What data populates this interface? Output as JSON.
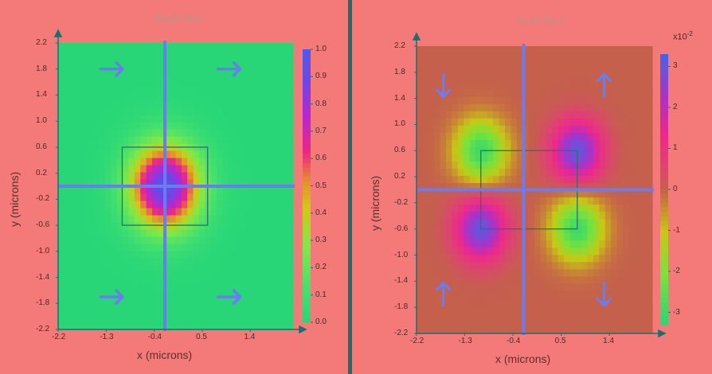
{
  "chart_data": [
    {
      "type": "heatmap",
      "title": "Real (Ex)",
      "xlabel": "x  (microns)",
      "ylabel": "y  (microns)",
      "x_ticks": [
        "-2.2",
        "-1.3",
        "-0.4",
        "0.5",
        "1.4"
      ],
      "y_ticks": [
        "2.2",
        "1.8",
        "1.4",
        "1.0",
        "0.6",
        "0.2",
        "-0.2",
        "-0.6",
        "-1.0",
        "-1.4",
        "-1.8",
        "-2.2"
      ],
      "colorbar_ticks": [
        "1.0",
        "0.9",
        "0.8",
        "0.7",
        "0.6",
        "0.5",
        "0.4",
        "0.3",
        "0.2",
        "0.1",
        "0.0"
      ],
      "colorbar_range": [
        0.0,
        1.0
      ],
      "xlim": [
        -2.2,
        2.2
      ],
      "ylim": [
        -2.2,
        2.2
      ],
      "field_peaks": [
        {
          "x": -0.2,
          "y": 0.0,
          "value": 0.95
        }
      ],
      "waveguide_box": {
        "x0": -1.0,
        "x1": 0.6,
        "y0": -0.6,
        "y1": 0.6
      },
      "arrows": [
        {
          "x": -1.2,
          "y": 1.8,
          "dir": "right"
        },
        {
          "x": 1.0,
          "y": 1.8,
          "dir": "right"
        },
        {
          "x": -1.2,
          "y": -1.7,
          "dir": "right"
        },
        {
          "x": 1.0,
          "y": -1.7,
          "dir": "right"
        }
      ]
    },
    {
      "type": "heatmap",
      "title": "Real (Ey)",
      "xlabel": "x  (microns)",
      "ylabel": "y  (microns)",
      "x_ticks": [
        "-2.2",
        "-1.3",
        "-0.4",
        "0.5",
        "1.4"
      ],
      "y_ticks": [
        "2.2",
        "1.8",
        "1.4",
        "1.0",
        "0.6",
        "0.2",
        "-0.2",
        "-0.6",
        "-1.0",
        "-1.4",
        "-1.8",
        "-2.2"
      ],
      "colorbar_ticks": [
        "3",
        "2",
        "1",
        "0",
        "-1",
        "-2",
        "-3"
      ],
      "colorbar_exponent": "x10",
      "colorbar_exponent_power": "-2",
      "colorbar_range": [
        -3.3,
        3.3
      ],
      "xlim": [
        -2.2,
        2.2
      ],
      "ylim": [
        -2.2,
        2.2
      ],
      "field_peaks": [
        {
          "x": 0.8,
          "y": 0.6,
          "value": 3.0
        },
        {
          "x": -1.0,
          "y": -0.6,
          "value": 3.0
        },
        {
          "x": -1.0,
          "y": 0.6,
          "value": -3.0
        },
        {
          "x": 0.8,
          "y": -0.6,
          "value": -3.0
        }
      ],
      "waveguide_box": {
        "x0": -1.0,
        "x1": 0.8,
        "y0": -0.6,
        "y1": 0.6
      },
      "arrows": [
        {
          "x": -1.7,
          "y": 1.6,
          "dir": "down"
        },
        {
          "x": 1.3,
          "y": 1.6,
          "dir": "up"
        },
        {
          "x": -1.7,
          "y": -1.6,
          "dir": "up"
        },
        {
          "x": 1.3,
          "y": -1.6,
          "dir": "down"
        }
      ]
    }
  ]
}
